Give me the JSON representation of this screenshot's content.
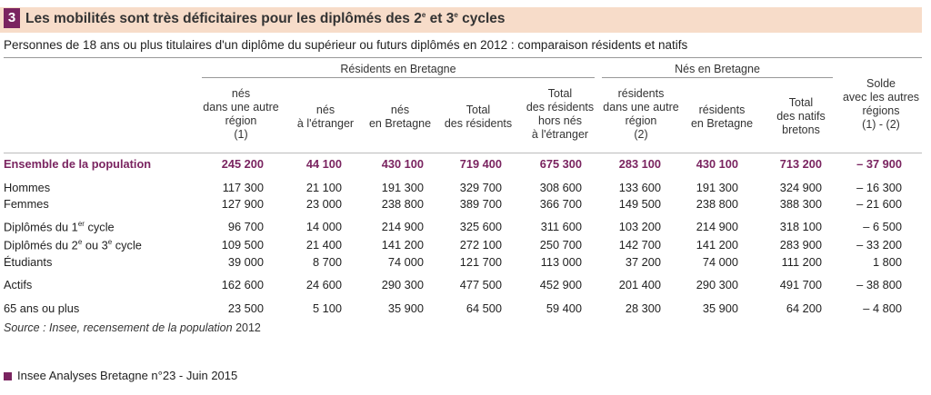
{
  "badge": "3",
  "title": "Les mobilités sont très déficitaires pour les diplômés des 2e et 3e cycles",
  "subtitle": "Personnes de 18 ans ou plus titulaires d'un diplôme du supérieur ou futurs diplômés en 2012 : comparaison résidents et natifs",
  "groups": {
    "residents": "Résidents en Bretagne",
    "natifs": "Nés en Bretagne"
  },
  "columns": [
    "nés dans une autre région (1)",
    "nés à l'étranger",
    "nés en Bretagne",
    "Total des résidents",
    "Total des résidents hors nés à l'étranger",
    "résidents dans une autre région (2)",
    "résidents en Bretagne",
    "Total des natifs bretons",
    "Solde avec les autres régions (1) - (2)"
  ],
  "rows": [
    {
      "label": "Ensemble de la population",
      "values": [
        "245 200",
        "44 100",
        "430 100",
        "719 400",
        "675 300",
        "283 100",
        "430 100",
        "713 200",
        "– 37 900"
      ]
    },
    {
      "label": "Hommes",
      "values": [
        "117 300",
        "21 100",
        "191 300",
        "329 700",
        "308 600",
        "133 600",
        "191 300",
        "324 900",
        "– 16 300"
      ]
    },
    {
      "label": "Femmes",
      "values": [
        "127 900",
        "23 000",
        "238 800",
        "389 700",
        "366 700",
        "149 500",
        "238 800",
        "388 300",
        "– 21 600"
      ]
    },
    {
      "label": "Diplômés du 1er cycle",
      "values": [
        "96 700",
        "14 000",
        "214 900",
        "325 600",
        "311 600",
        "103 200",
        "214 900",
        "318 100",
        "– 6 500"
      ]
    },
    {
      "label": "Diplômés du 2e ou 3e cycle",
      "values": [
        "109 500",
        "21 400",
        "141 200",
        "272 100",
        "250 700",
        "142 700",
        "141 200",
        "283 900",
        "– 33 200"
      ]
    },
    {
      "label": "Étudiants",
      "values": [
        "39 000",
        "8 700",
        "74 000",
        "121 700",
        "113 000",
        "37 200",
        "74 000",
        "111 200",
        "1 800"
      ]
    },
    {
      "label": "Actifs",
      "values": [
        "162 600",
        "24 600",
        "290 300",
        "477 500",
        "452 900",
        "201 400",
        "290 300",
        "491 700",
        "– 38 800"
      ]
    },
    {
      "label": "65 ans ou plus",
      "values": [
        "23 500",
        "5 100",
        "35 900",
        "64 500",
        "59 400",
        "28 300",
        "35 900",
        "64 200",
        "– 4 800"
      ]
    }
  ],
  "source_label": "Source :",
  "source_text": "Insee, recensement de la population",
  "source_year": "2012",
  "footer": "Insee Analyses Bretagne n°23 - Juin 2015",
  "colors": {
    "accent": "#7a2460",
    "header_bg": "#f7dcc9"
  }
}
